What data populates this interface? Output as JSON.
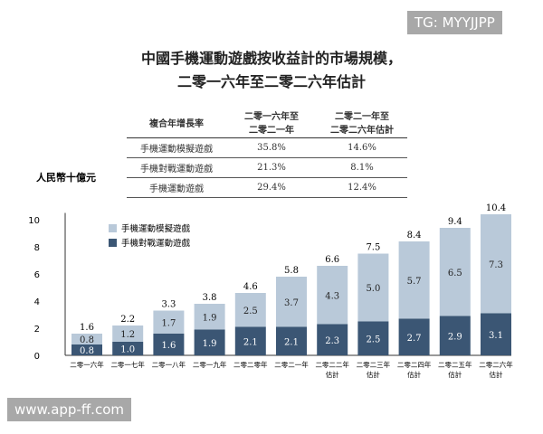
{
  "title_line1": "中國手機運動遊戲按收益計的市場規模，",
  "title_line2": "二零一六年至二零二六年估計",
  "cagr_table": {
    "headers": [
      "複合年增長率",
      "二零一六年至\n二零二一年",
      "二零二一年至\n二零二六年估計"
    ],
    "rows": [
      [
        "手機運動模擬遊戲",
        "35.8%",
        "14.6%"
      ],
      [
        "手機對戰運動遊戲",
        "21.3%",
        "8.1%"
      ],
      [
        "手機運動遊戲",
        "29.4%",
        "12.4%"
      ]
    ]
  },
  "watermark_top": "TG: MYYJJPP",
  "watermark_bottom": "www.app-ff.com",
  "chart_data": {
    "type": "stacked-bar",
    "ylabel": "人民幣十億元",
    "ylim": [
      0,
      10
    ],
    "yticks": [
      0,
      2,
      4,
      6,
      8,
      10
    ],
    "categories": [
      "二零一六年",
      "二零一七年",
      "二零一八年",
      "二零一九年",
      "二零二零年",
      "二零二一年",
      "二零二二年\n估計",
      "二零二三年\n估計",
      "二零二四年\n估計",
      "二零二五年\n估計",
      "二零二六年\n估計"
    ],
    "series": [
      {
        "name": "手機對戰運動遊戲",
        "color": "#3b5674",
        "values": [
          0.8,
          1.0,
          1.6,
          1.9,
          2.1,
          2.1,
          2.3,
          2.5,
          2.7,
          2.9,
          3.1
        ]
      },
      {
        "name": "手機運動模擬遊戲",
        "color": "#b9c9d9",
        "values": [
          0.8,
          1.2,
          1.7,
          1.9,
          2.5,
          3.7,
          4.3,
          5.0,
          5.7,
          6.5,
          7.3
        ]
      }
    ],
    "totals": [
      1.6,
      2.2,
      3.3,
      3.8,
      4.6,
      5.8,
      6.6,
      7.5,
      8.4,
      9.4,
      10.4
    ],
    "legend": "top-left",
    "grid": false
  }
}
